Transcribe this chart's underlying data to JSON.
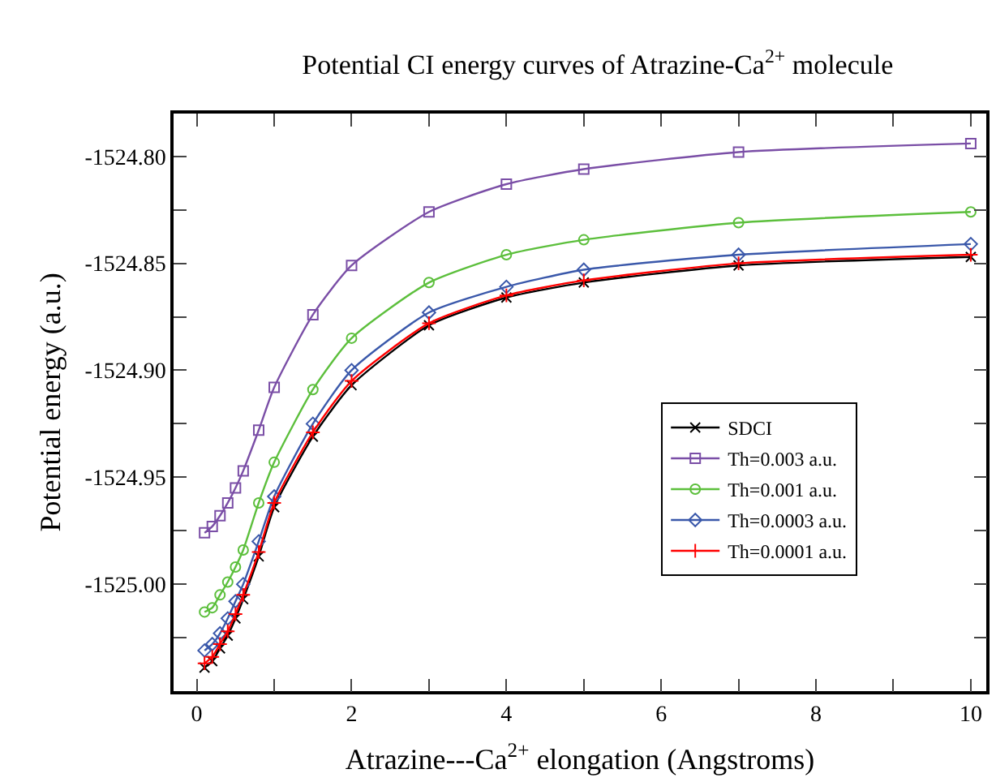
{
  "chart_data": {
    "type": "line",
    "title": "Potential CI energy curves of Atrazine-Ca$^{2+}$ molecule",
    "xlabel": "Atrazine---Ca$^{2+}$ elongation (Angstroms)",
    "ylabel": "Potential energy (a.u.)",
    "x": [
      0.1,
      0.2,
      0.3,
      0.4,
      0.5,
      0.6,
      0.8,
      1.0,
      1.5,
      2.0,
      3.0,
      4.0,
      5.0,
      7.0,
      10.0
    ],
    "series": [
      {
        "name": "SDCI",
        "color": "#000000",
        "marker": "x",
        "values": [
          -1525.039,
          -1525.036,
          -1525.03,
          -1525.024,
          -1525.016,
          -1525.007,
          -1524.987,
          -1524.964,
          -1524.931,
          -1524.907,
          -1524.879,
          -1524.866,
          -1524.859,
          -1524.851,
          -1524.847
        ]
      },
      {
        "name": "Th=0.003 a.u.",
        "color": "#7a4ea6",
        "marker": "square",
        "values": [
          -1524.976,
          -1524.973,
          -1524.968,
          -1524.962,
          -1524.955,
          -1524.947,
          -1524.928,
          -1524.908,
          -1524.874,
          -1524.851,
          -1524.826,
          -1524.813,
          -1524.806,
          -1524.798,
          -1524.794
        ]
      },
      {
        "name": "Th=0.001 a.u.",
        "color": "#5cbf3c",
        "marker": "circle",
        "values": [
          -1525.013,
          -1525.011,
          -1525.005,
          -1524.999,
          -1524.992,
          -1524.984,
          -1524.962,
          -1524.943,
          -1524.909,
          -1524.885,
          -1524.859,
          -1524.846,
          -1524.839,
          -1524.831,
          -1524.826
        ]
      },
      {
        "name": "Th=0.0003 a.u.",
        "color": "#3a58aa",
        "marker": "diamond",
        "values": [
          -1525.031,
          -1525.028,
          -1525.023,
          -1525.016,
          -1525.008,
          -1525.0,
          -1524.98,
          -1524.959,
          -1524.925,
          -1524.9,
          -1524.873,
          -1524.861,
          -1524.853,
          -1524.846,
          -1524.841
        ]
      },
      {
        "name": "Th=0.0001 a.u.",
        "color": "#ff0000",
        "marker": "plus",
        "values": [
          -1525.037,
          -1525.034,
          -1525.028,
          -1525.022,
          -1525.014,
          -1525.005,
          -1524.985,
          -1524.962,
          -1524.929,
          -1524.905,
          -1524.878,
          -1524.865,
          -1524.858,
          -1524.85,
          -1524.846
        ]
      }
    ],
    "xlim": [
      -0.3,
      10.2
    ],
    "xticks": [
      0,
      {
        "value": 1,
        "label": null
      },
      2,
      {
        "value": 3,
        "label": null
      },
      4,
      {
        "value": 5,
        "label": null
      },
      6,
      {
        "value": 7,
        "label": null
      },
      8,
      {
        "value": 9,
        "label": null
      },
      10
    ],
    "ylim": [
      -1525.05,
      -1524.78
    ],
    "yticks": [
      {
        "value": -1525.025,
        "label": null
      },
      {
        "value": -1525.0,
        "label": "-1525.00"
      },
      {
        "value": -1524.975,
        "label": null
      },
      {
        "value": -1524.95,
        "label": "-1524.95"
      },
      {
        "value": -1524.925,
        "label": null
      },
      {
        "value": -1524.9,
        "label": "-1524.90"
      },
      {
        "value": -1524.875,
        "label": null
      },
      {
        "value": -1524.85,
        "label": "-1524.85"
      },
      {
        "value": -1524.825,
        "label": null
      },
      {
        "value": -1524.8,
        "label": "-1524.80"
      }
    ],
    "grid": false,
    "legend": "right",
    "line_style": "solid"
  }
}
